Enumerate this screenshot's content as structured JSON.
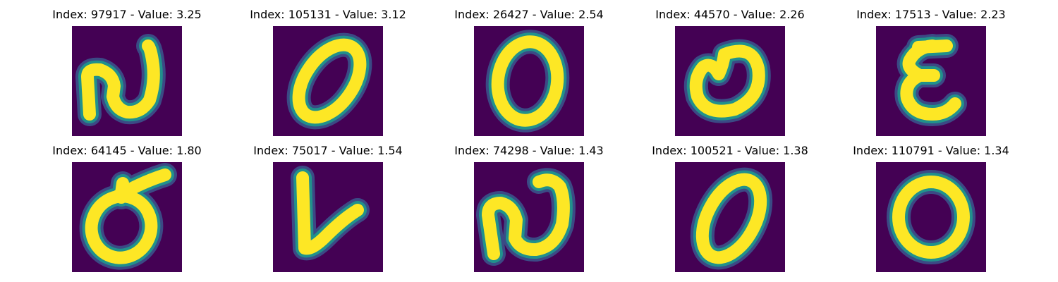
{
  "colors": {
    "background": "#440154",
    "low": "#3b528b",
    "mid": "#21918c",
    "high": "#fde725"
  },
  "grid": {
    "columns": 5,
    "rows": 2
  },
  "panels": [
    {
      "title": "Index: 97917 - Value: 3.25",
      "index": 97917,
      "value": 3.25,
      "shape": "n-shape"
    },
    {
      "title": "Index: 105131 - Value: 3.12",
      "index": 105131,
      "value": 3.12,
      "shape": "tilted-oval"
    },
    {
      "title": "Index: 26427 - Value: 2.54",
      "index": 26427,
      "value": 2.54,
      "shape": "oval"
    },
    {
      "title": "Index: 44570 - Value: 2.26",
      "index": 44570,
      "value": 2.26,
      "shape": "heart-oval"
    },
    {
      "title": "Index: 17513 - Value: 2.23",
      "index": 17513,
      "value": 2.23,
      "shape": "e-shape"
    },
    {
      "title": "Index: 64145 - Value: 1.80",
      "index": 64145,
      "value": 1.8,
      "shape": "o-with-stroke"
    },
    {
      "title": "Index: 75017 - Value: 1.54",
      "index": 75017,
      "value": 1.54,
      "shape": "v-shape"
    },
    {
      "title": "Index: 74298 - Value: 1.43",
      "index": 74298,
      "value": 1.43,
      "shape": "n-shape-2"
    },
    {
      "title": "Index: 100521 - Value: 1.38",
      "index": 100521,
      "value": 1.38,
      "shape": "slanted-oval"
    },
    {
      "title": "Index: 110791 - Value: 1.34",
      "index": 110791,
      "value": 1.34,
      "shape": "ring"
    }
  ]
}
